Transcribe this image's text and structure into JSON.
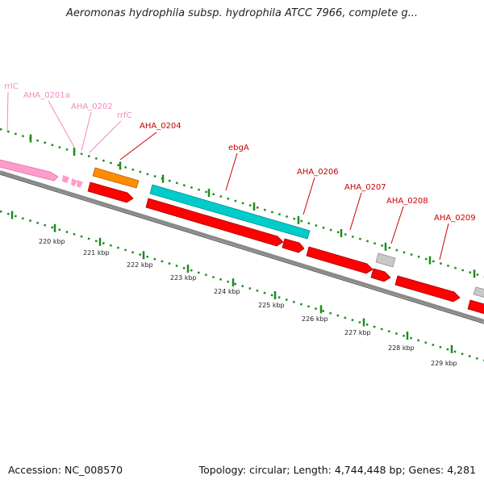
{
  "title": "Aeromonas hydrophila subsp. hydrophila ATCC 7966, complete g...",
  "footer": {
    "accession": "Accession: NC_008570",
    "summary": "Topology: circular; Length: 4,744,448 bp; Genes: 4,281"
  },
  "colors": {
    "rrna_label": "#f08cbe",
    "rrna_feature": "#ff9ccc",
    "cds_label": "#cc0000",
    "cds_feature": "#ff0000",
    "orange_feature": "#ff8c00",
    "cyan_feature": "#00cccc",
    "gray_feature": "#c8c8c8",
    "backbone": "#808080",
    "tick": "#1e8c1e"
  },
  "kbp_labels": [
    "220 kbp",
    "221 kbp",
    "222 kbp",
    "223 kbp",
    "224 kbp",
    "225 kbp",
    "226 kbp",
    "227 kbp",
    "228 kbp",
    "229 kbp"
  ],
  "gene_labels": [
    {
      "name": "rrlC",
      "type": "rrna"
    },
    {
      "name": "AHA_0201a",
      "type": "rrna"
    },
    {
      "name": "AHA_0202",
      "type": "rrna"
    },
    {
      "name": "rrfC",
      "type": "rrna"
    },
    {
      "name": "AHA_0204",
      "type": "cds"
    },
    {
      "name": "ebgA",
      "type": "cds"
    },
    {
      "name": "AHA_0206",
      "type": "cds"
    },
    {
      "name": "AHA_0207",
      "type": "cds"
    },
    {
      "name": "AHA_0208",
      "type": "cds"
    },
    {
      "name": "AHA_0209",
      "type": "cds"
    }
  ]
}
